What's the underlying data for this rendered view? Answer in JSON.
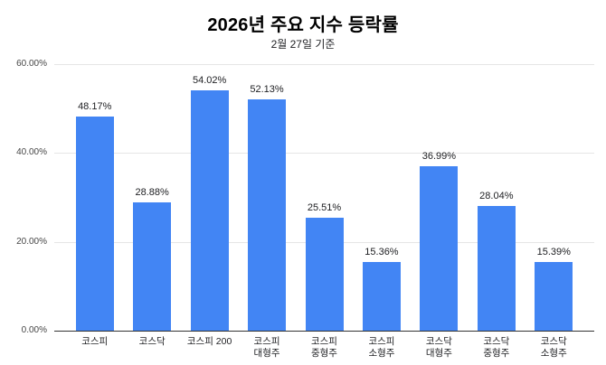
{
  "chart_data": {
    "type": "bar",
    "title": "2026년 주요 지수 등락률",
    "subtitle": "2월 27일 기준",
    "categories": [
      "코스피",
      "코스닥",
      "코스피 200",
      "코스피 대형주",
      "코스피 중형주",
      "코스피 소형주",
      "코스닥 대형주",
      "코스닥 중형주",
      "코스닥 소형주"
    ],
    "category_label_lines": [
      [
        "코스피"
      ],
      [
        "코스닥"
      ],
      [
        "코스피 200"
      ],
      [
        "코스피",
        "대형주"
      ],
      [
        "코스피",
        "중형주"
      ],
      [
        "코스피",
        "소형주"
      ],
      [
        "코스닥",
        "대형주"
      ],
      [
        "코스닥",
        "중형주"
      ],
      [
        "코스닥",
        "소형주"
      ]
    ],
    "values": [
      48.17,
      28.88,
      54.02,
      52.13,
      25.51,
      15.36,
      36.99,
      28.04,
      15.39
    ],
    "value_labels": [
      "48.17%",
      "28.88%",
      "54.02%",
      "52.13%",
      "25.51%",
      "15.36%",
      "36.99%",
      "28.04%",
      "15.39%"
    ],
    "y_ticks": [
      {
        "value": 0,
        "label": "0.00%"
      },
      {
        "value": 20,
        "label": "20.00%"
      },
      {
        "value": 40,
        "label": "40.00%"
      },
      {
        "value": 60,
        "label": "60.00%"
      }
    ],
    "ylim": [
      0,
      60
    ],
    "xlabel": "",
    "ylabel": "",
    "legend": "none",
    "grid": "horizontal",
    "bar_color": "#4285f4",
    "gridline_color": "#e6e6e6",
    "baseline_color": "#333333"
  }
}
